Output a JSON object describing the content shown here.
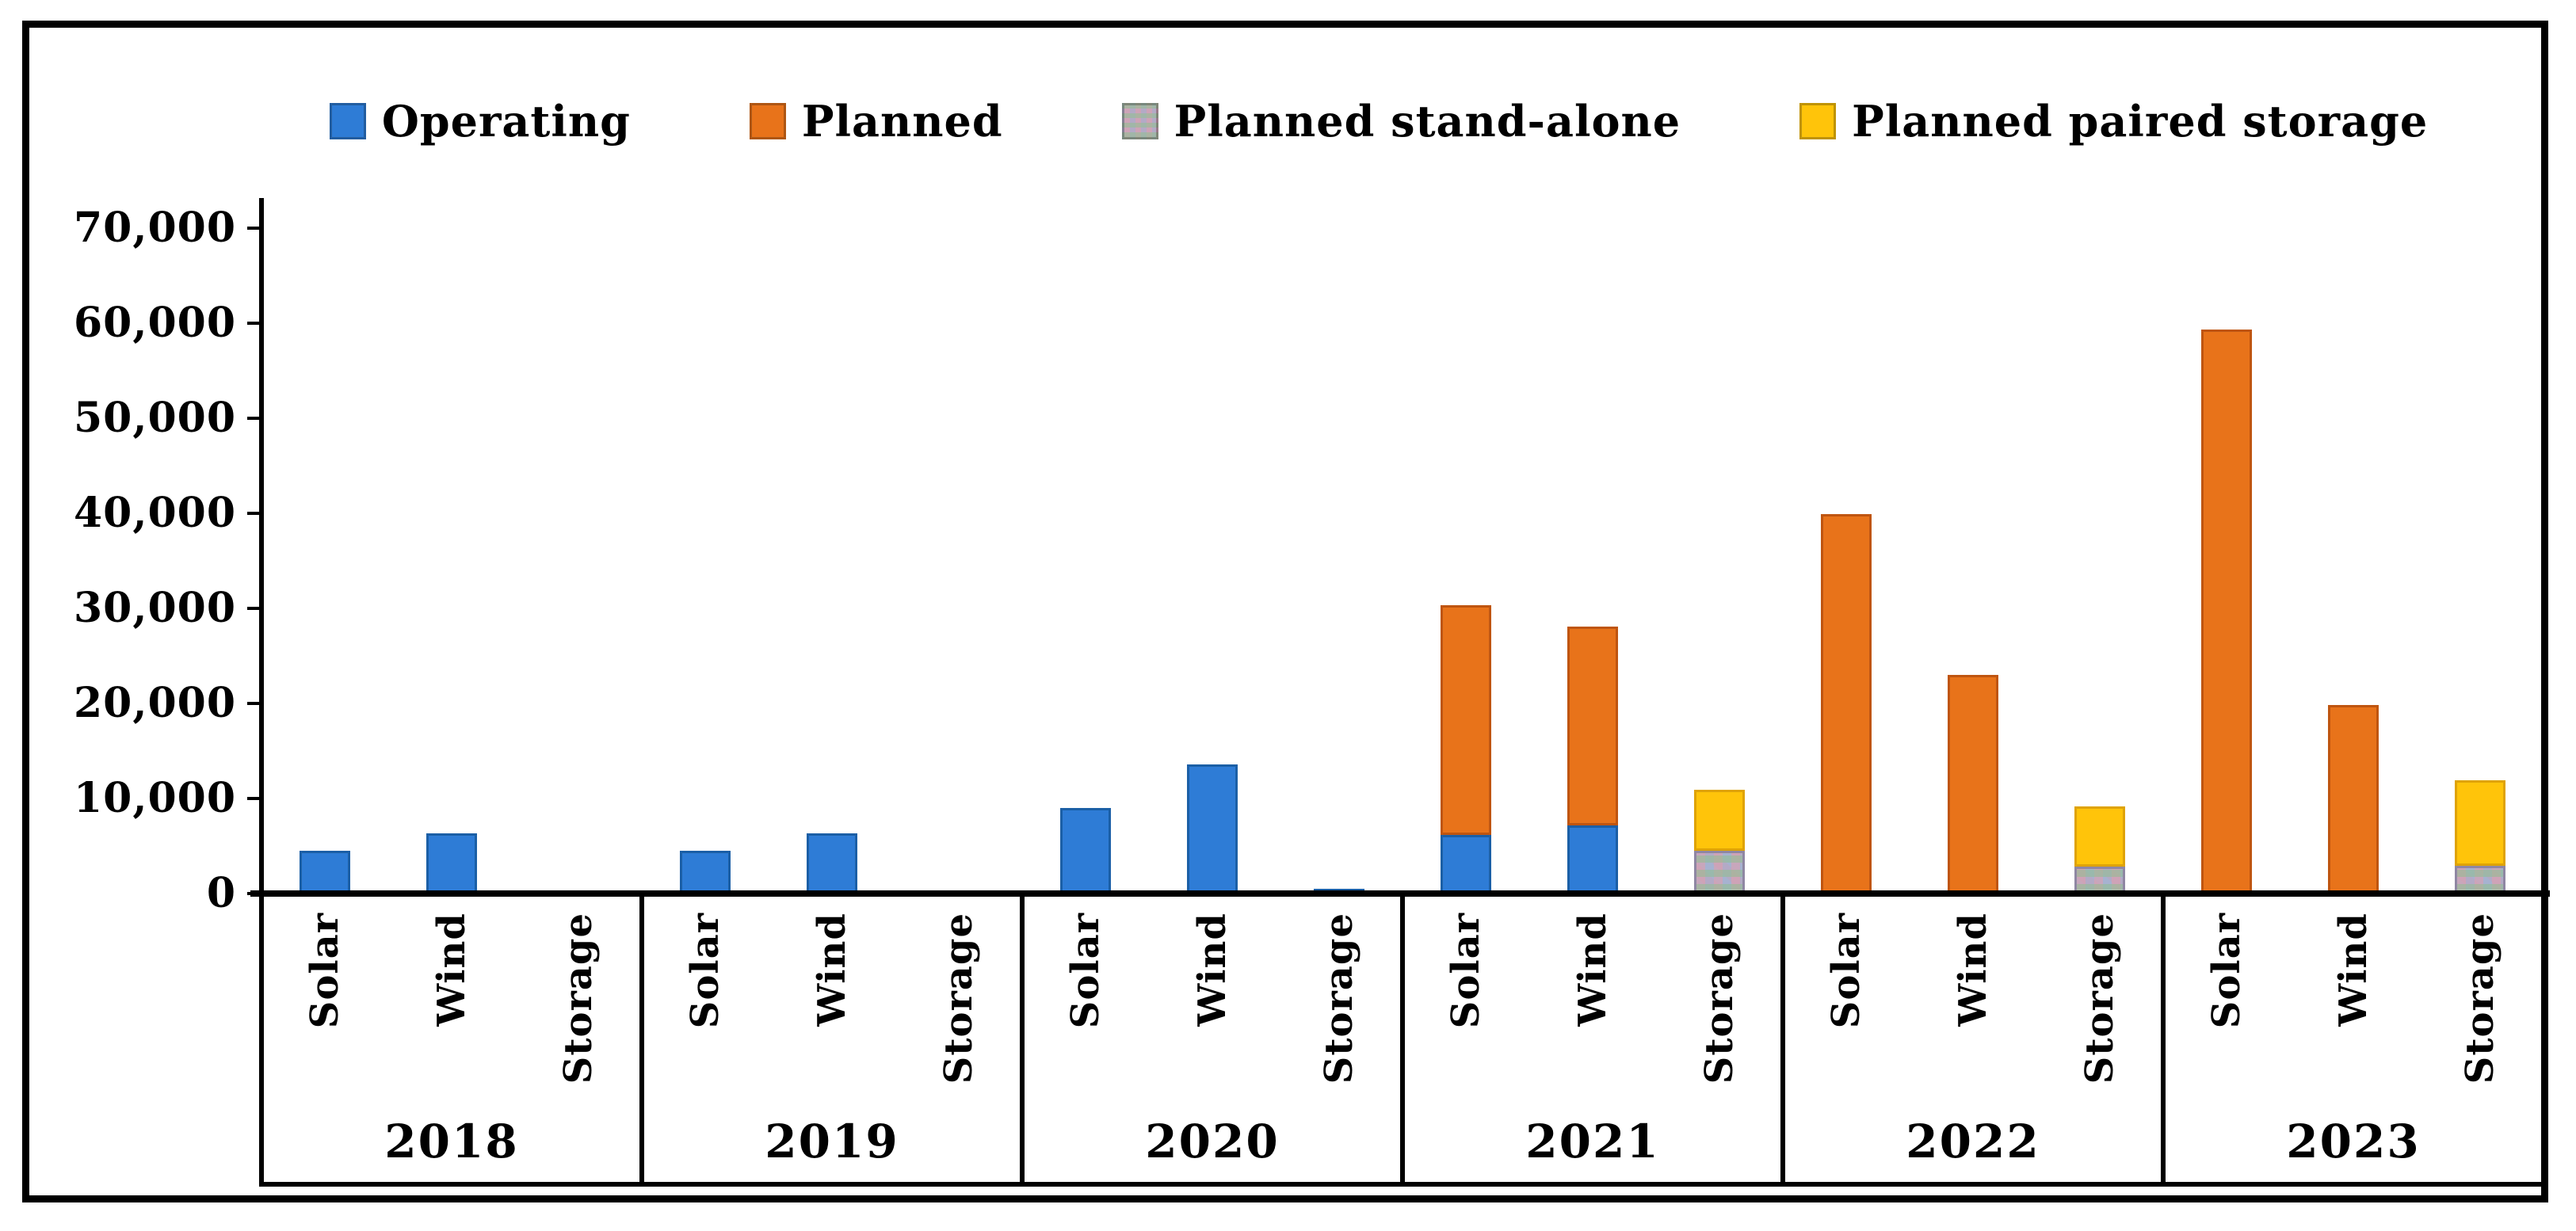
{
  "chart_data": {
    "type": "bar",
    "stacked": true,
    "title": "",
    "grid": false,
    "legend_position": "top",
    "y_axis": {
      "min": 0,
      "max": 70000,
      "tick_interval": 10000,
      "tick_labels": [
        "0",
        "10,000",
        "20,000",
        "30,000",
        "40,000",
        "50,000",
        "60,000",
        "70,000"
      ]
    },
    "legend": [
      {
        "name": "Operating",
        "color": "#2e7cd6",
        "pattern": "solid"
      },
      {
        "name": "Planned",
        "color": "#e8731a",
        "pattern": "solid"
      },
      {
        "name": "Planned stand-alone",
        "color": "#b3aac6",
        "pattern": "mottled-gray"
      },
      {
        "name": "Planned paired storage",
        "color": "#ffc40a",
        "pattern": "solid"
      }
    ],
    "groups": [
      {
        "year": "2018",
        "bars": [
          {
            "label": "Solar",
            "segments": [
              {
                "series": "Operating",
                "value": 4500
              }
            ]
          },
          {
            "label": "Wind",
            "segments": [
              {
                "series": "Operating",
                "value": 6300
              }
            ]
          },
          {
            "label": "Storage",
            "segments": []
          }
        ]
      },
      {
        "year": "2019",
        "bars": [
          {
            "label": "Solar",
            "segments": [
              {
                "series": "Operating",
                "value": 4500
              }
            ]
          },
          {
            "label": "Wind",
            "segments": [
              {
                "series": "Operating",
                "value": 6300
              }
            ]
          },
          {
            "label": "Storage",
            "segments": []
          }
        ]
      },
      {
        "year": "2020",
        "bars": [
          {
            "label": "Solar",
            "segments": [
              {
                "series": "Operating",
                "value": 9000
              }
            ]
          },
          {
            "label": "Wind",
            "segments": [
              {
                "series": "Operating",
                "value": 13600
              }
            ]
          },
          {
            "label": "Storage",
            "segments": [
              {
                "series": "Operating",
                "value": 400
              }
            ]
          }
        ]
      },
      {
        "year": "2021",
        "bars": [
          {
            "label": "Solar",
            "segments": [
              {
                "series": "Operating",
                "value": 6200
              },
              {
                "series": "Planned",
                "value": 24200
              }
            ]
          },
          {
            "label": "Wind",
            "segments": [
              {
                "series": "Operating",
                "value": 7200
              },
              {
                "series": "Planned",
                "value": 20900
              }
            ]
          },
          {
            "label": "Storage",
            "segments": [
              {
                "series": "Planned stand-alone",
                "value": 4500
              },
              {
                "series": "Planned paired storage",
                "value": 6400
              }
            ]
          }
        ]
      },
      {
        "year": "2022",
        "bars": [
          {
            "label": "Solar",
            "segments": [
              {
                "series": "Planned",
                "value": 39900
              }
            ]
          },
          {
            "label": "Wind",
            "segments": [
              {
                "series": "Planned",
                "value": 23000
              }
            ]
          },
          {
            "label": "Storage",
            "segments": [
              {
                "series": "Planned stand-alone",
                "value": 2800
              },
              {
                "series": "Planned paired storage",
                "value": 6300
              }
            ]
          }
        ]
      },
      {
        "year": "2023",
        "bars": [
          {
            "label": "Solar",
            "segments": [
              {
                "series": "Planned",
                "value": 59300
              }
            ]
          },
          {
            "label": "Wind",
            "segments": [
              {
                "series": "Planned",
                "value": 19800
              }
            ]
          },
          {
            "label": "Storage",
            "segments": [
              {
                "series": "Planned stand-alone",
                "value": 2900
              },
              {
                "series": "Planned paired storage",
                "value": 9000
              }
            ]
          }
        ]
      }
    ]
  }
}
